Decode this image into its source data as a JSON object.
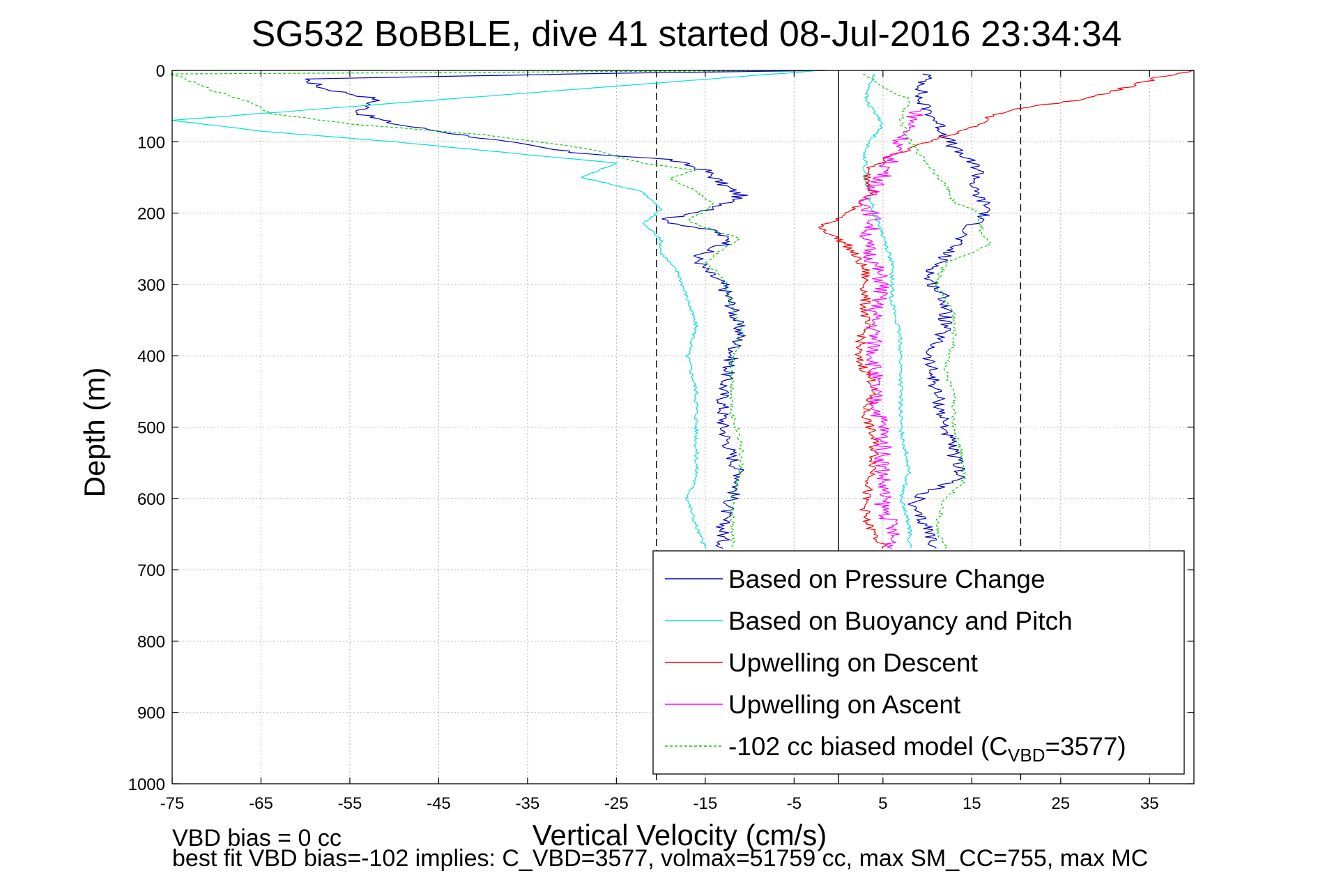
{
  "chart_data": {
    "type": "line",
    "title": "SG532 BoBBLE, dive 41 started 08-Jul-2016 23:34:34",
    "xlabel": "Vertical Velocity (cm/s)",
    "ylabel": "Depth (m)",
    "xlim": [
      -75,
      40
    ],
    "ylim": [
      0,
      1000
    ],
    "y_reversed": true,
    "grid": true,
    "x_ticks": [
      -75,
      -65,
      -55,
      -45,
      -35,
      -25,
      -15,
      -5,
      5,
      15,
      25,
      35
    ],
    "y_ticks": [
      0,
      100,
      200,
      300,
      400,
      500,
      600,
      700,
      800,
      900,
      1000
    ],
    "x_tick_labels": [
      "-75",
      "-65",
      "-55",
      "-45",
      "-35",
      "-25",
      "-15",
      "-5",
      "5",
      "15",
      "25",
      "35"
    ],
    "y_tick_labels": [
      "0",
      "100",
      "200",
      "300",
      "400",
      "500",
      "600",
      "700",
      "800",
      "900",
      "1000"
    ],
    "legend_position": "bottom-right",
    "reference_lines": [
      {
        "x": -20.5,
        "style": "dashed",
        "color": "#000000"
      },
      {
        "x": 20.5,
        "style": "dashed",
        "color": "#000000"
      },
      {
        "x": 0,
        "style": "solid",
        "color": "#000000"
      }
    ],
    "series": [
      {
        "name": "Based on Pressure Change",
        "color": "#0000cc",
        "style": "solid",
        "descent": [
          [
            -2,
            0
          ],
          [
            -30,
            5
          ],
          [
            -60,
            12
          ],
          [
            -58,
            25
          ],
          [
            -52,
            40
          ],
          [
            -54,
            60
          ],
          [
            -50,
            75
          ],
          [
            -40,
            95
          ],
          [
            -30,
            115
          ],
          [
            -19,
            125
          ],
          [
            -15,
            140
          ],
          [
            -13,
            160
          ],
          [
            -11,
            175
          ],
          [
            -14,
            195
          ],
          [
            -20,
            210
          ],
          [
            -14,
            225
          ],
          [
            -12,
            240
          ],
          [
            -16,
            260
          ],
          [
            -15,
            280
          ],
          [
            -13,
            300
          ],
          [
            -12,
            330
          ],
          [
            -11,
            370
          ],
          [
            -12,
            400
          ],
          [
            -13,
            450
          ],
          [
            -13,
            500
          ],
          [
            -12,
            540
          ],
          [
            -11,
            570
          ],
          [
            -12,
            600
          ],
          [
            -13,
            630
          ],
          [
            -13,
            670
          ]
        ],
        "ascent": [
          [
            10,
            5
          ],
          [
            9,
            40
          ],
          [
            11,
            70
          ],
          [
            13,
            110
          ],
          [
            16,
            140
          ],
          [
            15,
            165
          ],
          [
            17,
            195
          ],
          [
            14,
            230
          ],
          [
            12,
            260
          ],
          [
            10,
            290
          ],
          [
            12,
            320
          ],
          [
            12,
            360
          ],
          [
            10,
            400
          ],
          [
            11,
            450
          ],
          [
            12,
            500
          ],
          [
            13,
            540
          ],
          [
            14,
            570
          ],
          [
            10,
            590
          ],
          [
            8,
            610
          ],
          [
            10,
            640
          ],
          [
            11,
            670
          ]
        ]
      },
      {
        "name": "Based on Buoyancy and Pitch",
        "color": "#00e0e0",
        "style": "solid",
        "descent": [
          [
            -2,
            0
          ],
          [
            -75,
            70
          ],
          [
            -65,
            85
          ],
          [
            -50,
            100
          ],
          [
            -35,
            118
          ],
          [
            -25,
            130
          ],
          [
            -29,
            150
          ],
          [
            -22,
            170
          ],
          [
            -20,
            195
          ],
          [
            -22,
            215
          ],
          [
            -20,
            235
          ],
          [
            -20,
            255
          ],
          [
            -18,
            285
          ],
          [
            -17,
            320
          ],
          [
            -16,
            360
          ],
          [
            -17,
            400
          ],
          [
            -16,
            450
          ],
          [
            -16,
            500
          ],
          [
            -16,
            540
          ],
          [
            -16,
            570
          ],
          [
            -17,
            600
          ],
          [
            -16,
            640
          ],
          [
            -15,
            670
          ]
        ],
        "ascent": [
          [
            4,
            5
          ],
          [
            3,
            40
          ],
          [
            5,
            75
          ],
          [
            3,
            110
          ],
          [
            3,
            150
          ],
          [
            4,
            200
          ],
          [
            5,
            230
          ],
          [
            6,
            270
          ],
          [
            6,
            320
          ],
          [
            7,
            380
          ],
          [
            7,
            440
          ],
          [
            7,
            500
          ],
          [
            8,
            560
          ],
          [
            7,
            600
          ],
          [
            8,
            640
          ],
          [
            8,
            670
          ]
        ]
      },
      {
        "name": "Upwelling on Descent",
        "color": "#ff0000",
        "style": "solid",
        "points": [
          [
            40,
            0
          ],
          [
            36,
            10
          ],
          [
            32,
            25
          ],
          [
            28,
            40
          ],
          [
            22,
            50
          ],
          [
            18,
            60
          ],
          [
            15,
            80
          ],
          [
            10,
            100
          ],
          [
            6,
            120
          ],
          [
            3,
            140
          ],
          [
            4,
            170
          ],
          [
            1,
            200
          ],
          [
            -2,
            220
          ],
          [
            1,
            245
          ],
          [
            3,
            280
          ],
          [
            3,
            320
          ],
          [
            3,
            360
          ],
          [
            2,
            400
          ],
          [
            4,
            440
          ],
          [
            3,
            480
          ],
          [
            4,
            520
          ],
          [
            4,
            560
          ],
          [
            3,
            600
          ],
          [
            3,
            630
          ],
          [
            5,
            670
          ]
        ]
      },
      {
        "name": "Upwelling on Ascent",
        "color": "#ff00ff",
        "style": "solid",
        "points": [
          [
            9,
            55
          ],
          [
            8,
            80
          ],
          [
            7,
            100
          ],
          [
            6,
            120
          ],
          [
            5,
            150
          ],
          [
            3,
            180
          ],
          [
            4,
            210
          ],
          [
            3,
            240
          ],
          [
            4,
            270
          ],
          [
            5,
            300
          ],
          [
            4,
            340
          ],
          [
            4,
            380
          ],
          [
            4,
            420
          ],
          [
            4,
            460
          ],
          [
            5,
            500
          ],
          [
            5,
            540
          ],
          [
            5,
            580
          ],
          [
            5,
            610
          ],
          [
            6,
            640
          ],
          [
            6,
            670
          ]
        ]
      },
      {
        "name": "-102 cc biased model (C",
        "name_subscript": "VBD",
        "name_suffix": "=3577)",
        "color": "#00cc00",
        "style": "dashed",
        "descent": [
          [
            -2,
            0
          ],
          [
            -75,
            5
          ],
          [
            -70,
            30
          ],
          [
            -66,
            45
          ],
          [
            -64,
            60
          ],
          [
            -55,
            75
          ],
          [
            -40,
            90
          ],
          [
            -28,
            110
          ],
          [
            -22,
            130
          ],
          [
            -16,
            140
          ],
          [
            -19,
            150
          ],
          [
            -16,
            170
          ],
          [
            -14,
            190
          ],
          [
            -17,
            210
          ],
          [
            -14,
            225
          ],
          [
            -11,
            235
          ],
          [
            -13,
            250
          ],
          [
            -15,
            270
          ],
          [
            -13,
            290
          ],
          [
            -12,
            330
          ],
          [
            -11,
            370
          ],
          [
            -12,
            410
          ],
          [
            -12,
            450
          ],
          [
            -12,
            480
          ],
          [
            -11,
            520
          ],
          [
            -11,
            560
          ],
          [
            -12,
            600
          ],
          [
            -12,
            640
          ],
          [
            -12,
            670
          ]
        ],
        "ascent": [
          [
            3,
            5
          ],
          [
            5,
            25
          ],
          [
            8,
            40
          ],
          [
            7,
            70
          ],
          [
            8,
            100
          ],
          [
            10,
            130
          ],
          [
            12,
            160
          ],
          [
            13,
            185
          ],
          [
            16,
            200
          ],
          [
            16,
            225
          ],
          [
            17,
            245
          ],
          [
            12,
            270
          ],
          [
            11,
            300
          ],
          [
            13,
            340
          ],
          [
            13,
            380
          ],
          [
            12,
            420
          ],
          [
            13,
            460
          ],
          [
            13,
            500
          ],
          [
            14,
            540
          ],
          [
            14,
            580
          ],
          [
            12,
            600
          ],
          [
            11,
            640
          ],
          [
            12,
            670
          ]
        ]
      }
    ]
  },
  "footer": {
    "bias_text": "VBD bias = 0 cc",
    "fit_text": "best fit VBD bias=-102 implies: C_VBD=3577, volmax=51759 cc, max SM_CC=755, max MC"
  }
}
